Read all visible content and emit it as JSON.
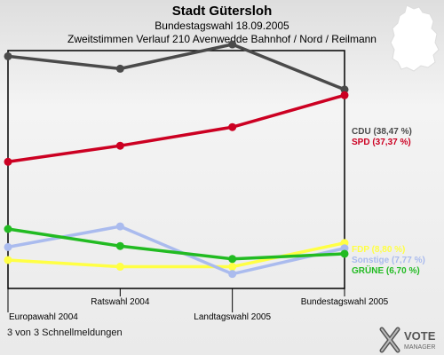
{
  "header": {
    "title": "Stadt Gütersloh",
    "subtitle": "Bundestagswahl 18.09.2005",
    "description": "Zweitstimmen Verlauf 210 Avenwedde Bahnhof / Nord / Reilmann"
  },
  "footer": {
    "note": "3 von 3 Schnellmeldungen"
  },
  "logo": {
    "line1": "VOTE",
    "line2": "MANAGER"
  },
  "chart_data": {
    "type": "line",
    "title": "Stadt Gütersloh",
    "categories": [
      "Europawahl 2004",
      "Ratswahl 2004",
      "Landtagswahl 2005",
      "Bundestagswahl 2005"
    ],
    "ylim": [
      0,
      46
    ],
    "grid": false,
    "series": [
      {
        "name": "CDU",
        "label": "CDU (38,47 %)",
        "color": "#4a4a4a",
        "values": [
          44.9,
          42.5,
          47.2,
          38.47
        ]
      },
      {
        "name": "SPD",
        "label": "SPD (37,37 %)",
        "color": "#cc0022",
        "values": [
          24.5,
          27.6,
          31.2,
          37.37
        ]
      },
      {
        "name": "FDP",
        "label": "FDP (8,80 %)",
        "color": "#ffff44",
        "values": [
          5.5,
          4.2,
          4.2,
          8.8
        ]
      },
      {
        "name": "Sonstige",
        "label": "Sonstige (7,77 %)",
        "color": "#aabbee",
        "values": [
          8.0,
          12.0,
          2.8,
          7.77
        ]
      },
      {
        "name": "GRÜNE",
        "label": "GRÜNE (6,70 %)",
        "color": "#22bb22",
        "values": [
          11.5,
          8.2,
          5.7,
          6.7
        ]
      }
    ]
  }
}
